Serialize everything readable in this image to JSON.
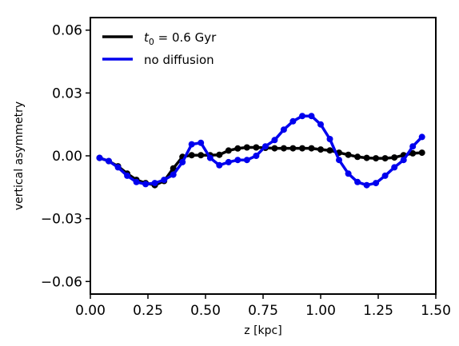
{
  "chart_data": {
    "type": "line",
    "xlabel": "z [kpc]",
    "ylabel": "vertical asymmetry",
    "xlim": [
      0.0,
      1.5
    ],
    "ylim": [
      -0.066,
      0.066
    ],
    "xticks": [
      0.0,
      0.25,
      0.5,
      0.75,
      1.0,
      1.25,
      1.5
    ],
    "xtick_labels": [
      "0.00",
      "0.25",
      "0.50",
      "0.75",
      "1.00",
      "1.25",
      "1.50"
    ],
    "yticks": [
      -0.06,
      -0.03,
      0.0,
      0.03,
      0.06
    ],
    "ytick_labels": [
      "−0.06",
      "−0.03",
      "0.00",
      "0.03",
      "0.06"
    ],
    "grid": false,
    "legend_position": "top-left",
    "series": [
      {
        "name": "t0 = 0.6 Gyr",
        "legend_label": {
          "main": "t",
          "sub": "0",
          "rest": " = 0.6 Gyr"
        },
        "color": "#000000",
        "x": [
          0.04,
          0.08,
          0.12,
          0.16,
          0.2,
          0.24,
          0.28,
          0.32,
          0.36,
          0.4,
          0.44,
          0.48,
          0.52,
          0.56,
          0.6,
          0.64,
          0.68,
          0.72,
          0.76,
          0.8,
          0.84,
          0.88,
          0.92,
          0.96,
          1.0,
          1.04,
          1.08,
          1.12,
          1.16,
          1.2,
          1.24,
          1.28,
          1.32,
          1.36,
          1.4,
          1.44
        ],
        "y": [
          -0.001,
          -0.0025,
          -0.005,
          -0.0085,
          -0.0115,
          -0.013,
          -0.014,
          -0.012,
          -0.006,
          -0.0005,
          0.0003,
          0.0003,
          0.0003,
          0.0005,
          0.0025,
          0.0035,
          0.004,
          0.004,
          0.0038,
          0.0036,
          0.0036,
          0.0036,
          0.0036,
          0.0036,
          0.003,
          0.0026,
          0.0015,
          0.0005,
          -0.0005,
          -0.001,
          -0.0012,
          -0.0012,
          -0.0008,
          0.0003,
          0.0012,
          0.0015
        ]
      },
      {
        "name": "no diffusion",
        "color": "#0000ee",
        "x": [
          0.04,
          0.08,
          0.12,
          0.16,
          0.2,
          0.24,
          0.28,
          0.32,
          0.36,
          0.4,
          0.44,
          0.48,
          0.52,
          0.56,
          0.6,
          0.64,
          0.68,
          0.72,
          0.76,
          0.8,
          0.84,
          0.88,
          0.92,
          0.96,
          1.0,
          1.04,
          1.08,
          1.12,
          1.16,
          1.2,
          1.24,
          1.28,
          1.32,
          1.36,
          1.4,
          1.44
        ],
        "y": [
          -0.001,
          -0.0025,
          -0.0055,
          -0.0095,
          -0.0125,
          -0.0135,
          -0.013,
          -0.0115,
          -0.009,
          -0.003,
          0.0055,
          0.0062,
          -0.001,
          -0.0045,
          -0.003,
          -0.002,
          -0.002,
          0.0,
          0.0045,
          0.0075,
          0.0125,
          0.0165,
          0.019,
          0.019,
          0.015,
          0.008,
          -0.002,
          -0.0085,
          -0.0125,
          -0.014,
          -0.013,
          -0.0095,
          -0.0055,
          -0.002,
          0.0045,
          0.009
        ]
      }
    ]
  }
}
